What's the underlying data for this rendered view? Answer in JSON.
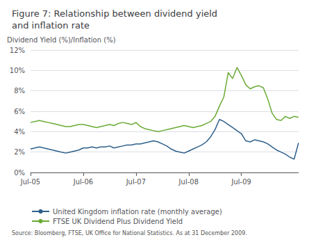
{
  "chart_data": {
    "type": "line",
    "title": "Figure 7: Relationship between dividend yield\nand inflation rate",
    "ylabel": "Dividend Yield (%)/Inflation (%)",
    "annotations": [
      "Source: Bloomberg, FTSE, UK Office for National Statistics. As at 31 December 2009."
    ],
    "categories": [
      "Jul-05",
      null,
      null,
      null,
      null,
      null,
      null,
      null,
      null,
      null,
      null,
      null,
      "Jul-06",
      null,
      null,
      null,
      null,
      null,
      null,
      null,
      null,
      null,
      null,
      null,
      "Jul-07",
      null,
      null,
      null,
      null,
      null,
      null,
      null,
      null,
      null,
      null,
      null,
      "Jul-08",
      null,
      null,
      null,
      null,
      null,
      null,
      null,
      null,
      null,
      null,
      null,
      "Jul-09",
      null,
      null,
      null,
      null,
      null,
      null,
      null,
      null,
      null,
      null,
      null,
      null,
      null
    ],
    "series": [
      {
        "name": "United Kingdom inflation rate (monthly average)",
        "color": "#2e5f8a",
        "values": [
          2.3,
          2.4,
          2.5,
          2.4,
          2.3,
          2.2,
          2.1,
          2.0,
          1.9,
          2.0,
          2.1,
          2.2,
          2.4,
          2.4,
          2.5,
          2.4,
          2.5,
          2.5,
          2.6,
          2.4,
          2.5,
          2.6,
          2.7,
          2.7,
          2.8,
          2.8,
          2.9,
          3.0,
          3.1,
          3.0,
          2.8,
          2.6,
          2.3,
          2.1,
          2.0,
          1.9,
          2.1,
          2.3,
          2.5,
          2.7,
          3.0,
          3.5,
          4.2,
          5.2,
          5.0,
          4.7,
          4.4,
          4.1,
          3.8,
          3.1,
          3.0,
          3.2,
          3.1,
          3.0,
          2.8,
          2.5,
          2.2,
          2.0,
          1.8,
          1.5,
          1.3,
          2.9
        ]
      },
      {
        "name": "FTSE UK Dividend Plus Dividend Yield",
        "color": "#6aaa35",
        "values": [
          4.9,
          5.0,
          5.1,
          5.0,
          4.9,
          4.8,
          4.7,
          4.6,
          4.5,
          4.5,
          4.6,
          4.7,
          4.7,
          4.6,
          4.5,
          4.4,
          4.5,
          4.6,
          4.7,
          4.6,
          4.8,
          4.9,
          4.8,
          4.7,
          4.9,
          4.5,
          4.3,
          4.2,
          4.1,
          4.0,
          4.1,
          4.2,
          4.3,
          4.4,
          4.5,
          4.6,
          4.5,
          4.4,
          4.5,
          4.6,
          4.8,
          5.0,
          5.5,
          6.5,
          7.4,
          9.8,
          9.2,
          10.3,
          9.5,
          8.6,
          8.2,
          8.4,
          8.5,
          8.3,
          7.2,
          5.8,
          5.2,
          5.1,
          5.5,
          5.3,
          5.5,
          5.4
        ]
      }
    ],
    "ylim": [
      0,
      12
    ],
    "yticks": [
      {
        "value": 0,
        "label": "0%"
      },
      {
        "value": 2,
        "label": "2%"
      },
      {
        "value": 4,
        "label": "4%"
      },
      {
        "value": 6,
        "label": "6%"
      },
      {
        "value": 8,
        "label": "8%"
      },
      {
        "value": 10,
        "label": "10%"
      },
      {
        "value": 12,
        "label": "12%"
      }
    ],
    "grid": true,
    "legend": "bottom"
  }
}
